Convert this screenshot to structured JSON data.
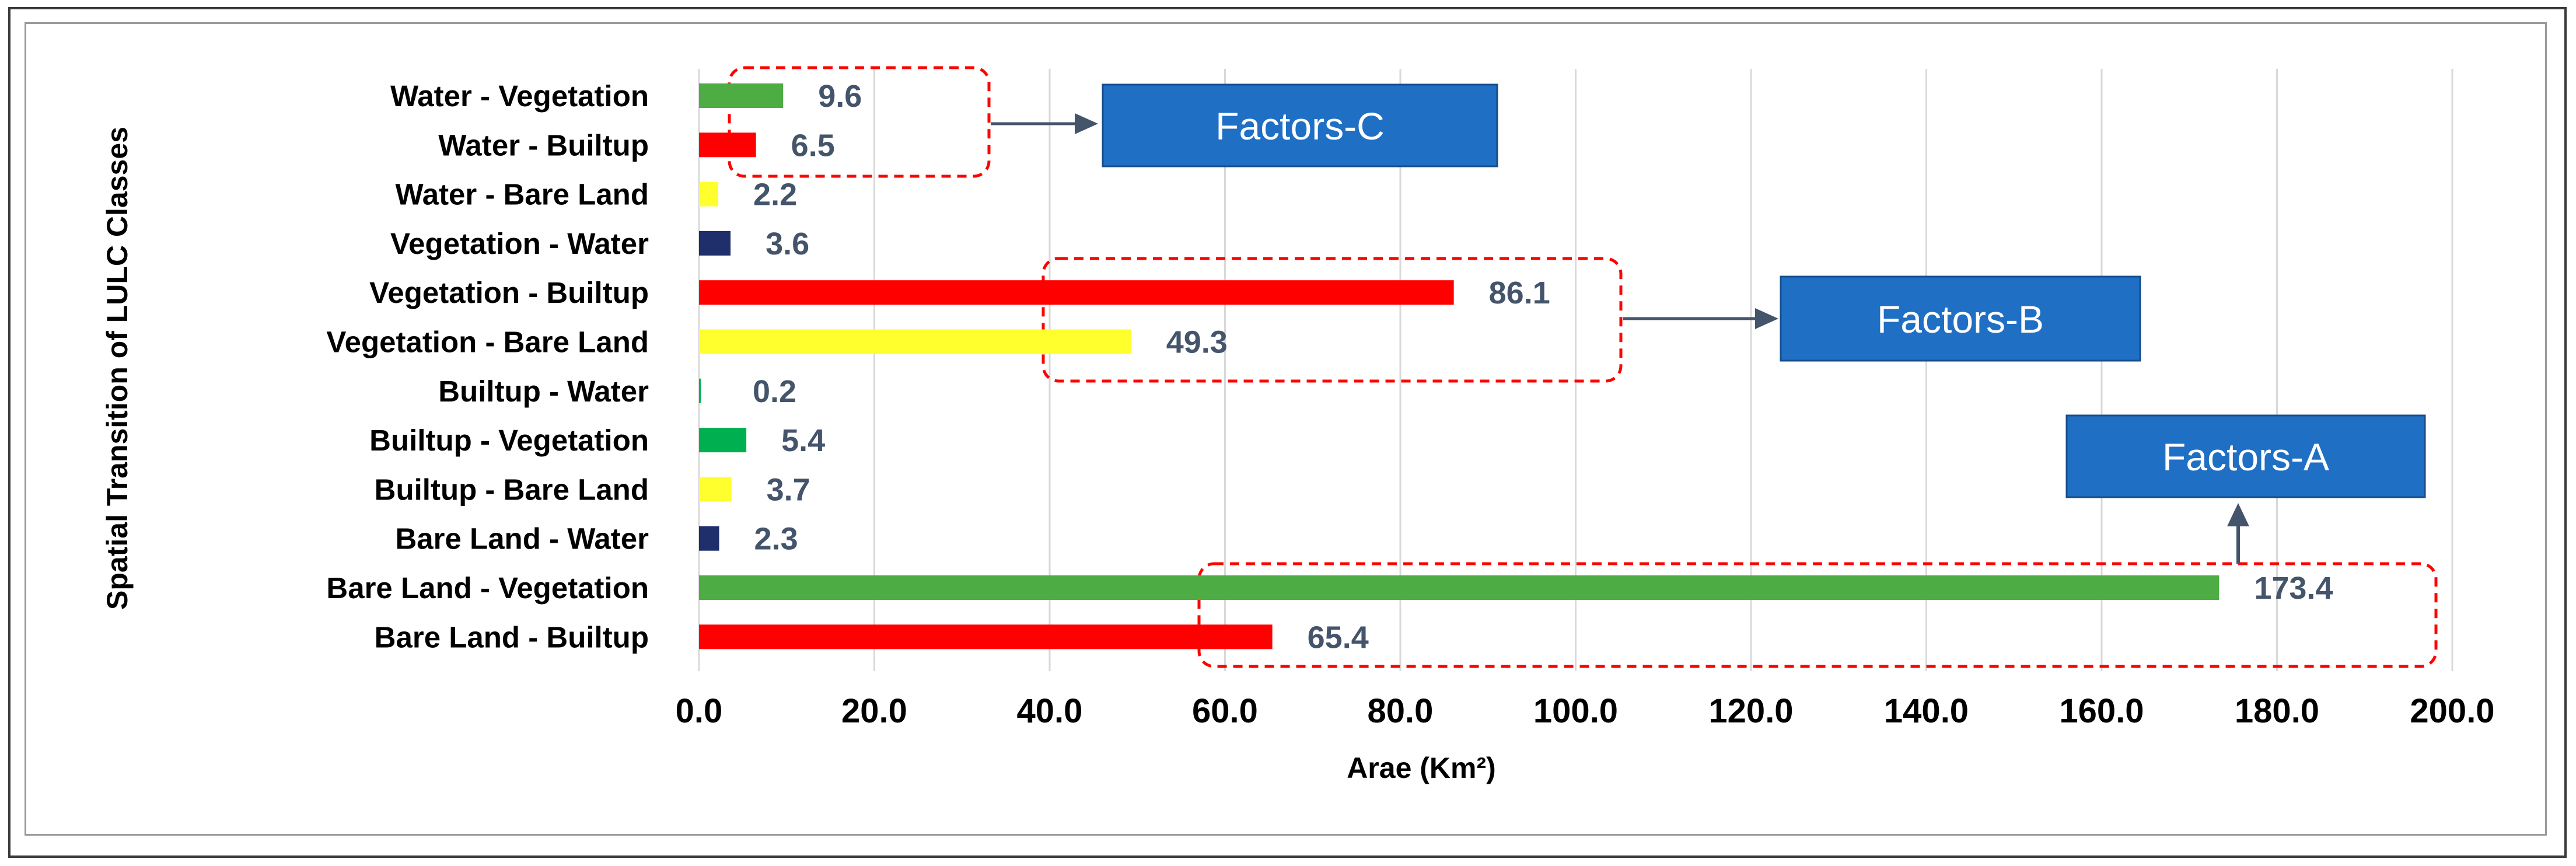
{
  "chart_data": {
    "type": "bar",
    "orientation": "horizontal",
    "categories": [
      "Water - Vegetation",
      "Water - Builtup",
      "Water - Bare Land",
      "Vegetation - Water",
      "Vegetation - Builtup",
      "Vegetation - Bare Land",
      "Builtup - Water",
      "Builtup - Vegetation",
      "Builtup - Bare Land",
      "Bare Land - Water",
      "Bare Land - Vegetation",
      "Bare Land - Builtup"
    ],
    "values": [
      9.6,
      6.5,
      2.2,
      3.6,
      86.1,
      49.3,
      0.2,
      5.4,
      3.7,
      2.3,
      173.4,
      65.4
    ],
    "data_labels": [
      "9.6",
      "6.5",
      "2.2",
      "3.6",
      "86.1",
      "49.3",
      "0.2",
      "5.4",
      "3.7",
      "2.3",
      "173.4",
      "65.4"
    ],
    "bar_colors": [
      "#4eac44",
      "#ff0000",
      "#ffff2e",
      "#1f2f6b",
      "#ff0000",
      "#ffff2e",
      "#00b050",
      "#00b050",
      "#ffff2e",
      "#1f2f6b",
      "#4eac44",
      "#ff0000"
    ],
    "xlim": [
      0,
      200
    ],
    "xticks": [
      "0.0",
      "20.0",
      "40.0",
      "60.0",
      "80.0",
      "100.0",
      "120.0",
      "140.0",
      "160.0",
      "180.0",
      "200.0"
    ],
    "xlabel": "Arae (Km²)",
    "ylabel": "Spatial Transition of LULC Classes",
    "grid": "vertical",
    "annotations": [
      {
        "label": "Factors-C",
        "groups": [
          "Water - Vegetation",
          "Water - Builtup"
        ],
        "arrow": "right"
      },
      {
        "label": "Factors-B",
        "groups": [
          "Vegetation - Builtup",
          "Vegetation - Bare Land"
        ],
        "arrow": "right"
      },
      {
        "label": "Factors-A",
        "groups": [
          "Bare Land - Vegetation",
          "Bare Land - Builtup"
        ],
        "arrow": "up"
      }
    ],
    "colors": {
      "highlight_box": "#ff0000",
      "factor_box": "#1f6fc4",
      "arrow": "#44546a",
      "gridline": "#d9d9d9"
    }
  }
}
